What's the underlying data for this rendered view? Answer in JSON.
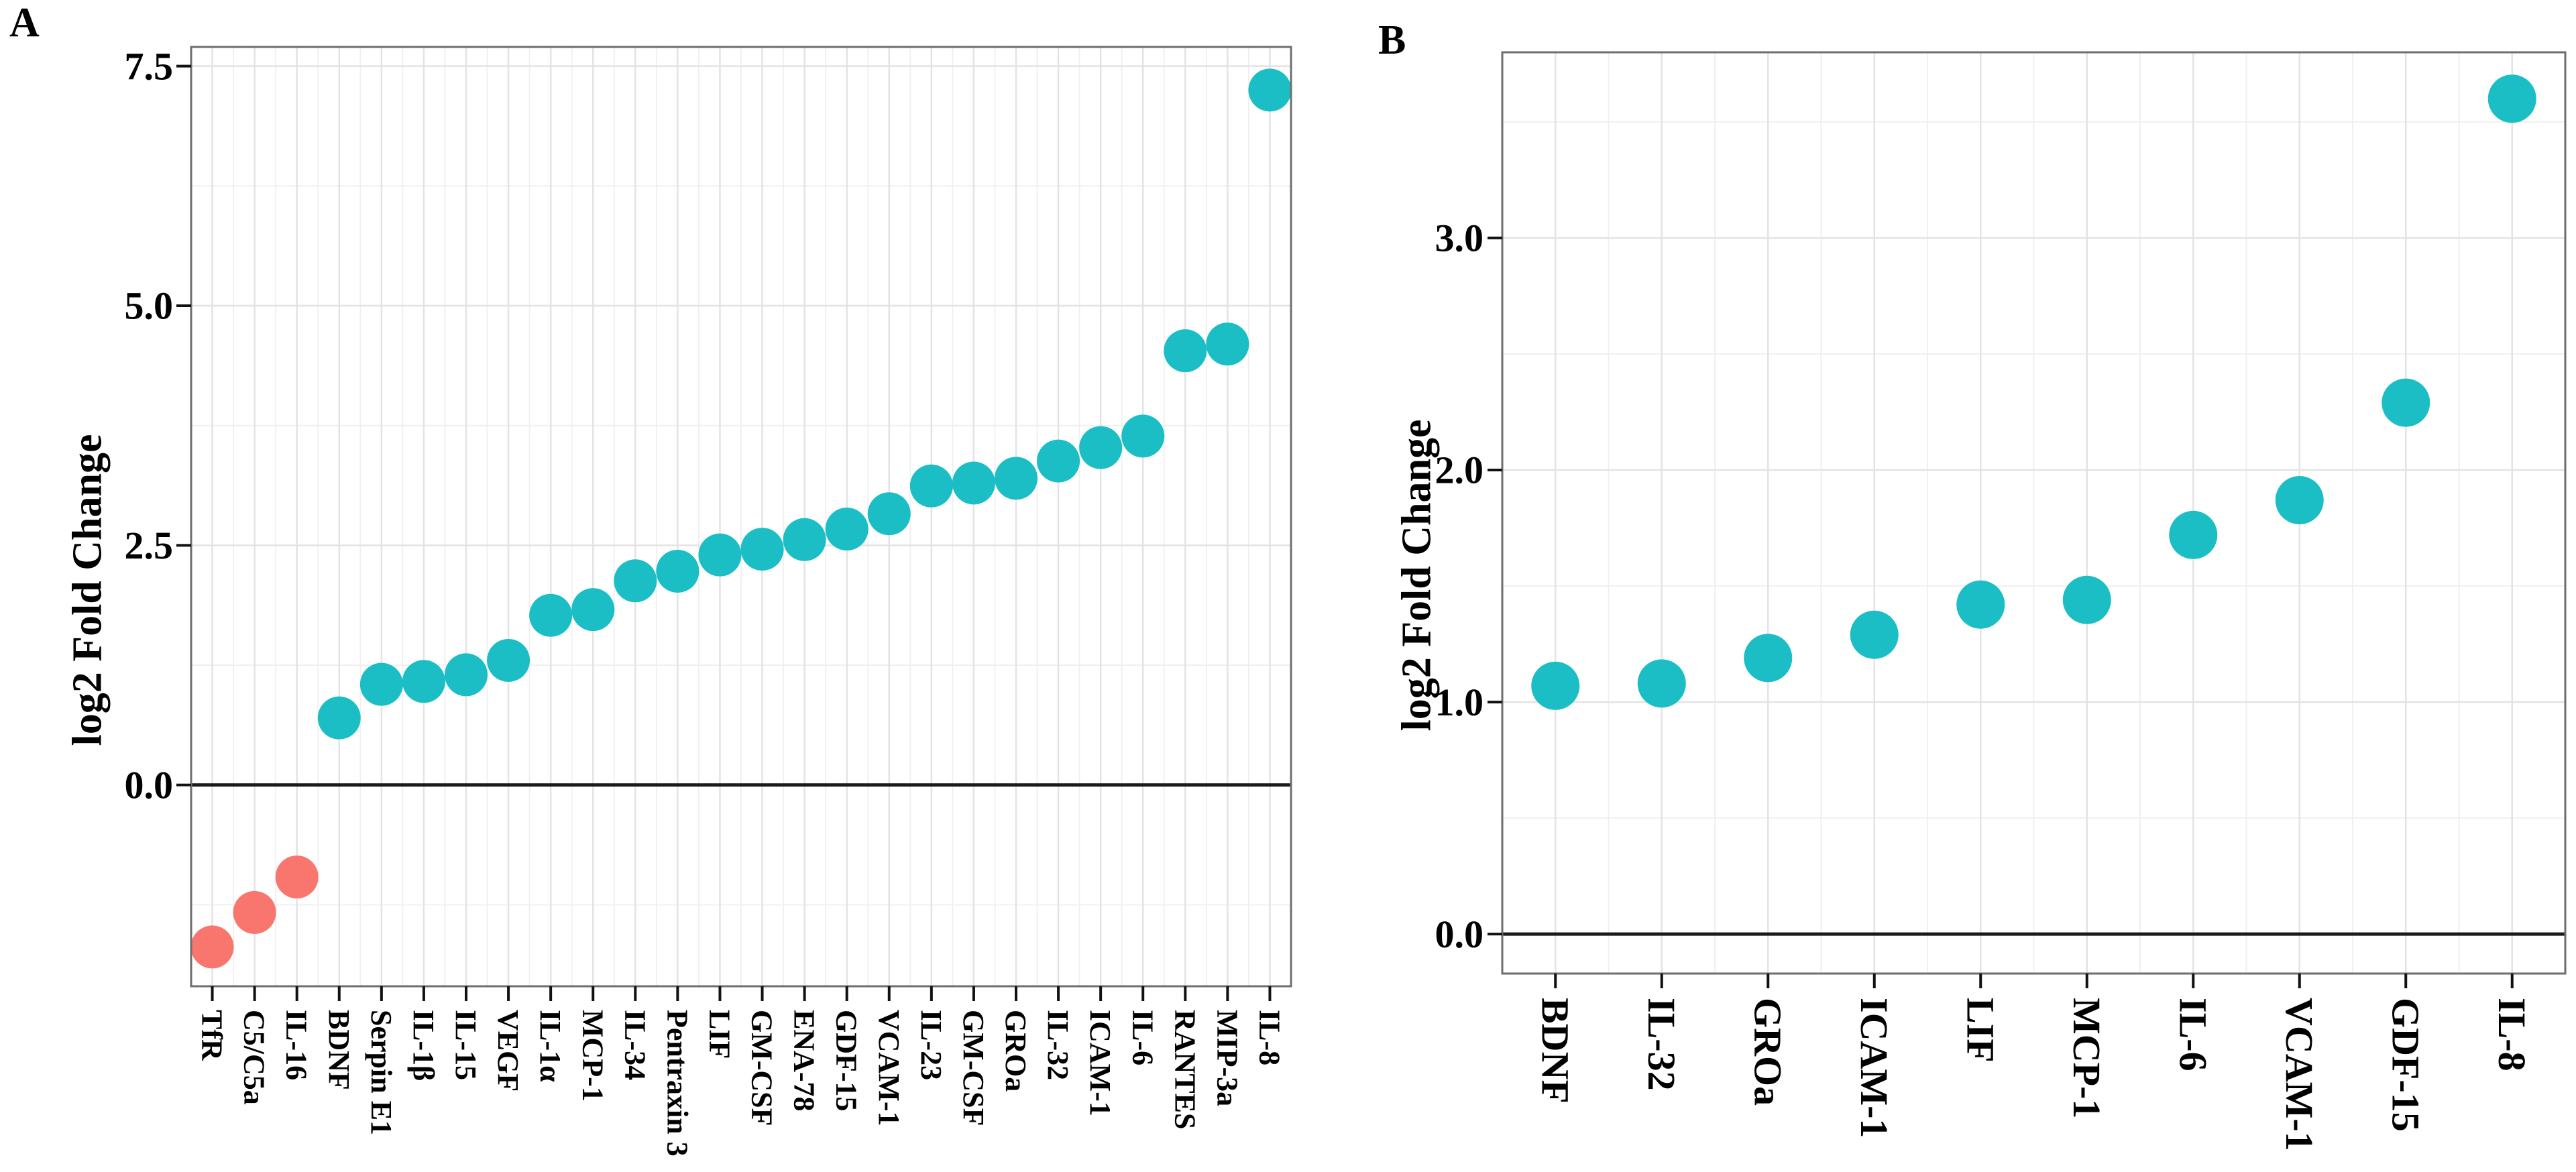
{
  "figure": {
    "panels": [
      {
        "letter": "A",
        "ylabel": "log2 Fold Change"
      },
      {
        "letter": "B",
        "ylabel": "log2 Fold Change"
      }
    ]
  },
  "chart_data": [
    {
      "type": "scatter",
      "panel": "A",
      "title": "",
      "xlabel": "",
      "ylabel": "log2 Fold Change",
      "categories": [
        "TfR",
        "C5/C5a",
        "IL-16",
        "BDNF",
        "Serpin E1",
        "IL-1β",
        "IL-15",
        "VEGF",
        "IL-1α",
        "MCP-1",
        "IL-34",
        "Pentraxin 3",
        "LIF",
        "GM-CSF",
        "ENA-78",
        "GDF-15",
        "VCAM-1",
        "IL-23",
        "GM-CSF",
        "GROa",
        "IL-32",
        "ICAM-1",
        "IL-6",
        "RANTES",
        "MIP-3a",
        "IL-8"
      ],
      "values": [
        -1.69,
        -1.33,
        -0.96,
        0.7,
        1.05,
        1.08,
        1.15,
        1.3,
        1.77,
        1.83,
        2.13,
        2.23,
        2.4,
        2.46,
        2.56,
        2.67,
        2.83,
        3.12,
        3.15,
        3.2,
        3.38,
        3.52,
        3.64,
        4.53,
        4.6,
        7.25
      ],
      "point_colors": {
        "positive": "#1CBEC6",
        "negative": "#F8766D"
      },
      "yticks": [
        0.0,
        2.5,
        5.0,
        7.5
      ],
      "ytick_labels": [
        "0.0",
        "2.5",
        "5.0",
        "7.5"
      ],
      "yminor": [
        -1.25,
        1.25,
        3.75,
        6.25
      ],
      "ylim": [
        -2.1,
        7.7
      ],
      "zero_line": true,
      "grid": true,
      "legend": "none"
    },
    {
      "type": "scatter",
      "panel": "B",
      "title": "",
      "xlabel": "",
      "ylabel": "log2 Fold Change",
      "categories": [
        "BDNF",
        "IL-32",
        "GROa",
        "ICAM-1",
        "LIF",
        "MCP-1",
        "IL-6",
        "VCAM-1",
        "GDF-15",
        "IL-8"
      ],
      "values": [
        1.07,
        1.08,
        1.19,
        1.29,
        1.42,
        1.44,
        1.72,
        1.87,
        2.29,
        3.6
      ],
      "point_colors": {
        "positive": "#1CBEC6",
        "negative": "#F8766D"
      },
      "yticks": [
        0.0,
        1.0,
        2.0,
        3.0
      ],
      "ytick_labels": [
        "0.0",
        "1.0",
        "2.0",
        "3.0"
      ],
      "yminor": [
        0.5,
        1.5,
        2.5,
        3.5
      ],
      "ylim": [
        -0.17,
        3.8
      ],
      "zero_line": true,
      "grid": true,
      "legend": "none"
    }
  ]
}
